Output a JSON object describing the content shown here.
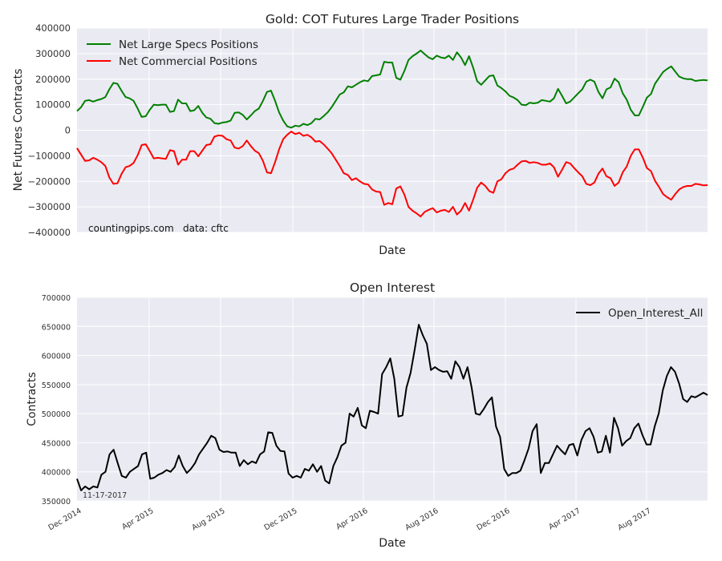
{
  "source_note": "countingpips.com",
  "data_note": "data: cftc",
  "date_stamp": "11-17-2017",
  "colors": {
    "plot_bg": "#eaeaf2",
    "grid": "#ffffff",
    "large_specs": "#008000",
    "commercial": "#ff0000",
    "open_interest": "#000000"
  },
  "chart_data": [
    {
      "type": "line",
      "title": "Gold: COT Futures Large Trader Positions",
      "xlabel": "Date",
      "ylabel": "Net Futures Contracts",
      "ylim": [
        -400000,
        400000
      ],
      "yticks": [
        400000,
        300000,
        200000,
        100000,
        0,
        -100000,
        -200000,
        -300000,
        -400000
      ],
      "ytick_labels": [
        "400000",
        "300000",
        "200000",
        "100000",
        "0",
        "−100000",
        "−200000",
        "−300000",
        "−400000"
      ],
      "grid": true,
      "legend_position": "upper-left",
      "series": [
        {
          "name": "Net Large Specs Positions",
          "color": "#008000",
          "values": [
            75000,
            90000,
            115000,
            118000,
            112000,
            118000,
            122000,
            130000,
            160000,
            185000,
            182000,
            155000,
            130000,
            125000,
            115000,
            85000,
            52000,
            55000,
            80000,
            100000,
            98000,
            100000,
            100000,
            72000,
            75000,
            120000,
            105000,
            105000,
            75000,
            78000,
            95000,
            68000,
            50000,
            45000,
            28000,
            25000,
            30000,
            32000,
            38000,
            68000,
            70000,
            60000,
            42000,
            58000,
            75000,
            85000,
            115000,
            150000,
            155000,
            115000,
            70000,
            38000,
            15000,
            10000,
            18000,
            15000,
            25000,
            20000,
            28000,
            45000,
            42000,
            55000,
            70000,
            90000,
            115000,
            140000,
            148000,
            172000,
            168000,
            178000,
            188000,
            195000,
            192000,
            212000,
            215000,
            218000,
            268000,
            265000,
            265000,
            205000,
            198000,
            232000,
            275000,
            290000,
            300000,
            312000,
            298000,
            285000,
            278000,
            292000,
            285000,
            282000,
            292000,
            275000,
            305000,
            285000,
            255000,
            290000,
            245000,
            192000,
            178000,
            195000,
            212000,
            215000,
            175000,
            165000,
            152000,
            135000,
            128000,
            118000,
            100000,
            98000,
            108000,
            105000,
            108000,
            118000,
            115000,
            112000,
            125000,
            162000,
            135000,
            105000,
            112000,
            128000,
            145000,
            160000,
            190000,
            198000,
            190000,
            150000,
            125000,
            160000,
            168000,
            202000,
            188000,
            145000,
            120000,
            80000,
            58000,
            58000,
            92000,
            128000,
            142000,
            182000,
            205000,
            228000,
            240000,
            250000,
            230000,
            210000,
            203000,
            200000,
            200000,
            193000,
            195000,
            197000,
            195000
          ]
        },
        {
          "name": "Net Commercial Positions",
          "color": "#ff0000",
          "values": [
            -70000,
            -95000,
            -120000,
            -118000,
            -108000,
            -115000,
            -125000,
            -140000,
            -185000,
            -210000,
            -208000,
            -172000,
            -145000,
            -140000,
            -128000,
            -98000,
            -58000,
            -55000,
            -82000,
            -110000,
            -108000,
            -110000,
            -112000,
            -78000,
            -82000,
            -135000,
            -115000,
            -115000,
            -82000,
            -82000,
            -102000,
            -80000,
            -58000,
            -55000,
            -25000,
            -20000,
            -22000,
            -35000,
            -40000,
            -68000,
            -72000,
            -62000,
            -40000,
            -62000,
            -80000,
            -90000,
            -120000,
            -165000,
            -168000,
            -125000,
            -75000,
            -35000,
            -18000,
            -5000,
            -15000,
            -10000,
            -22000,
            -18000,
            -28000,
            -45000,
            -42000,
            -55000,
            -72000,
            -90000,
            -115000,
            -140000,
            -168000,
            -175000,
            -195000,
            -188000,
            -200000,
            -210000,
            -212000,
            -232000,
            -240000,
            -242000,
            -292000,
            -285000,
            -290000,
            -228000,
            -220000,
            -252000,
            -300000,
            -315000,
            -325000,
            -338000,
            -320000,
            -312000,
            -305000,
            -322000,
            -315000,
            -312000,
            -320000,
            -300000,
            -330000,
            -315000,
            -285000,
            -315000,
            -272000,
            -225000,
            -205000,
            -218000,
            -238000,
            -245000,
            -200000,
            -192000,
            -168000,
            -155000,
            -150000,
            -135000,
            -122000,
            -120000,
            -128000,
            -125000,
            -128000,
            -135000,
            -135000,
            -130000,
            -145000,
            -182000,
            -155000,
            -125000,
            -130000,
            -148000,
            -165000,
            -180000,
            -210000,
            -215000,
            -205000,
            -170000,
            -150000,
            -180000,
            -188000,
            -218000,
            -205000,
            -165000,
            -142000,
            -100000,
            -75000,
            -75000,
            -108000,
            -148000,
            -160000,
            -198000,
            -222000,
            -250000,
            -262000,
            -272000,
            -250000,
            -232000,
            -222000,
            -218000,
            -218000,
            -210000,
            -212000,
            -216000,
            -215000
          ]
        }
      ]
    },
    {
      "type": "line",
      "title": "Open Interest",
      "xlabel": "Date",
      "ylabel": "Contracts",
      "ylim": [
        350000,
        700000
      ],
      "yticks": [
        700000,
        650000,
        600000,
        550000,
        500000,
        450000,
        400000,
        350000
      ],
      "ytick_labels": [
        "700000",
        "650000",
        "600000",
        "550000",
        "500000",
        "450000",
        "400000",
        "350000"
      ],
      "x_tick_labels": [
        "Dec 2014",
        "Apr 2015",
        "Aug 2015",
        "Dec 2015",
        "Apr 2016",
        "Aug 2016",
        "Dec 2016",
        "Apr 2017",
        "Aug 2017"
      ],
      "grid": true,
      "legend_position": "upper-right",
      "series": [
        {
          "name": "Open_Interest_All",
          "color": "#000000",
          "values": [
            388000,
            368000,
            375000,
            370000,
            375000,
            373000,
            395000,
            400000,
            430000,
            438000,
            415000,
            393000,
            390000,
            400000,
            405000,
            410000,
            430000,
            433000,
            388000,
            390000,
            395000,
            398000,
            403000,
            400000,
            408000,
            428000,
            410000,
            398000,
            405000,
            415000,
            430000,
            440000,
            450000,
            462000,
            458000,
            438000,
            434000,
            435000,
            433000,
            433000,
            410000,
            420000,
            413000,
            418000,
            415000,
            430000,
            435000,
            468000,
            467000,
            445000,
            436000,
            435000,
            397000,
            390000,
            393000,
            390000,
            405000,
            402000,
            413000,
            400000,
            410000,
            385000,
            380000,
            410000,
            425000,
            445000,
            450000,
            500000,
            495000,
            510000,
            480000,
            475000,
            505000,
            503000,
            500000,
            568000,
            580000,
            595000,
            560000,
            495000,
            497000,
            545000,
            570000,
            610000,
            653000,
            635000,
            620000,
            575000,
            580000,
            575000,
            572000,
            573000,
            560000,
            590000,
            580000,
            560000,
            580000,
            545000,
            500000,
            498000,
            508000,
            520000,
            528000,
            478000,
            460000,
            405000,
            393000,
            398000,
            398000,
            402000,
            420000,
            440000,
            470000,
            482000,
            398000,
            415000,
            415000,
            430000,
            445000,
            437000,
            430000,
            446000,
            448000,
            428000,
            455000,
            470000,
            475000,
            460000,
            433000,
            435000,
            462000,
            433000,
            493000,
            475000,
            445000,
            453000,
            458000,
            475000,
            483000,
            463000,
            447000,
            447000,
            478000,
            500000,
            540000,
            565000,
            580000,
            572000,
            552000,
            525000,
            520000,
            530000,
            528000,
            532000,
            536000,
            532000
          ]
        }
      ]
    }
  ]
}
